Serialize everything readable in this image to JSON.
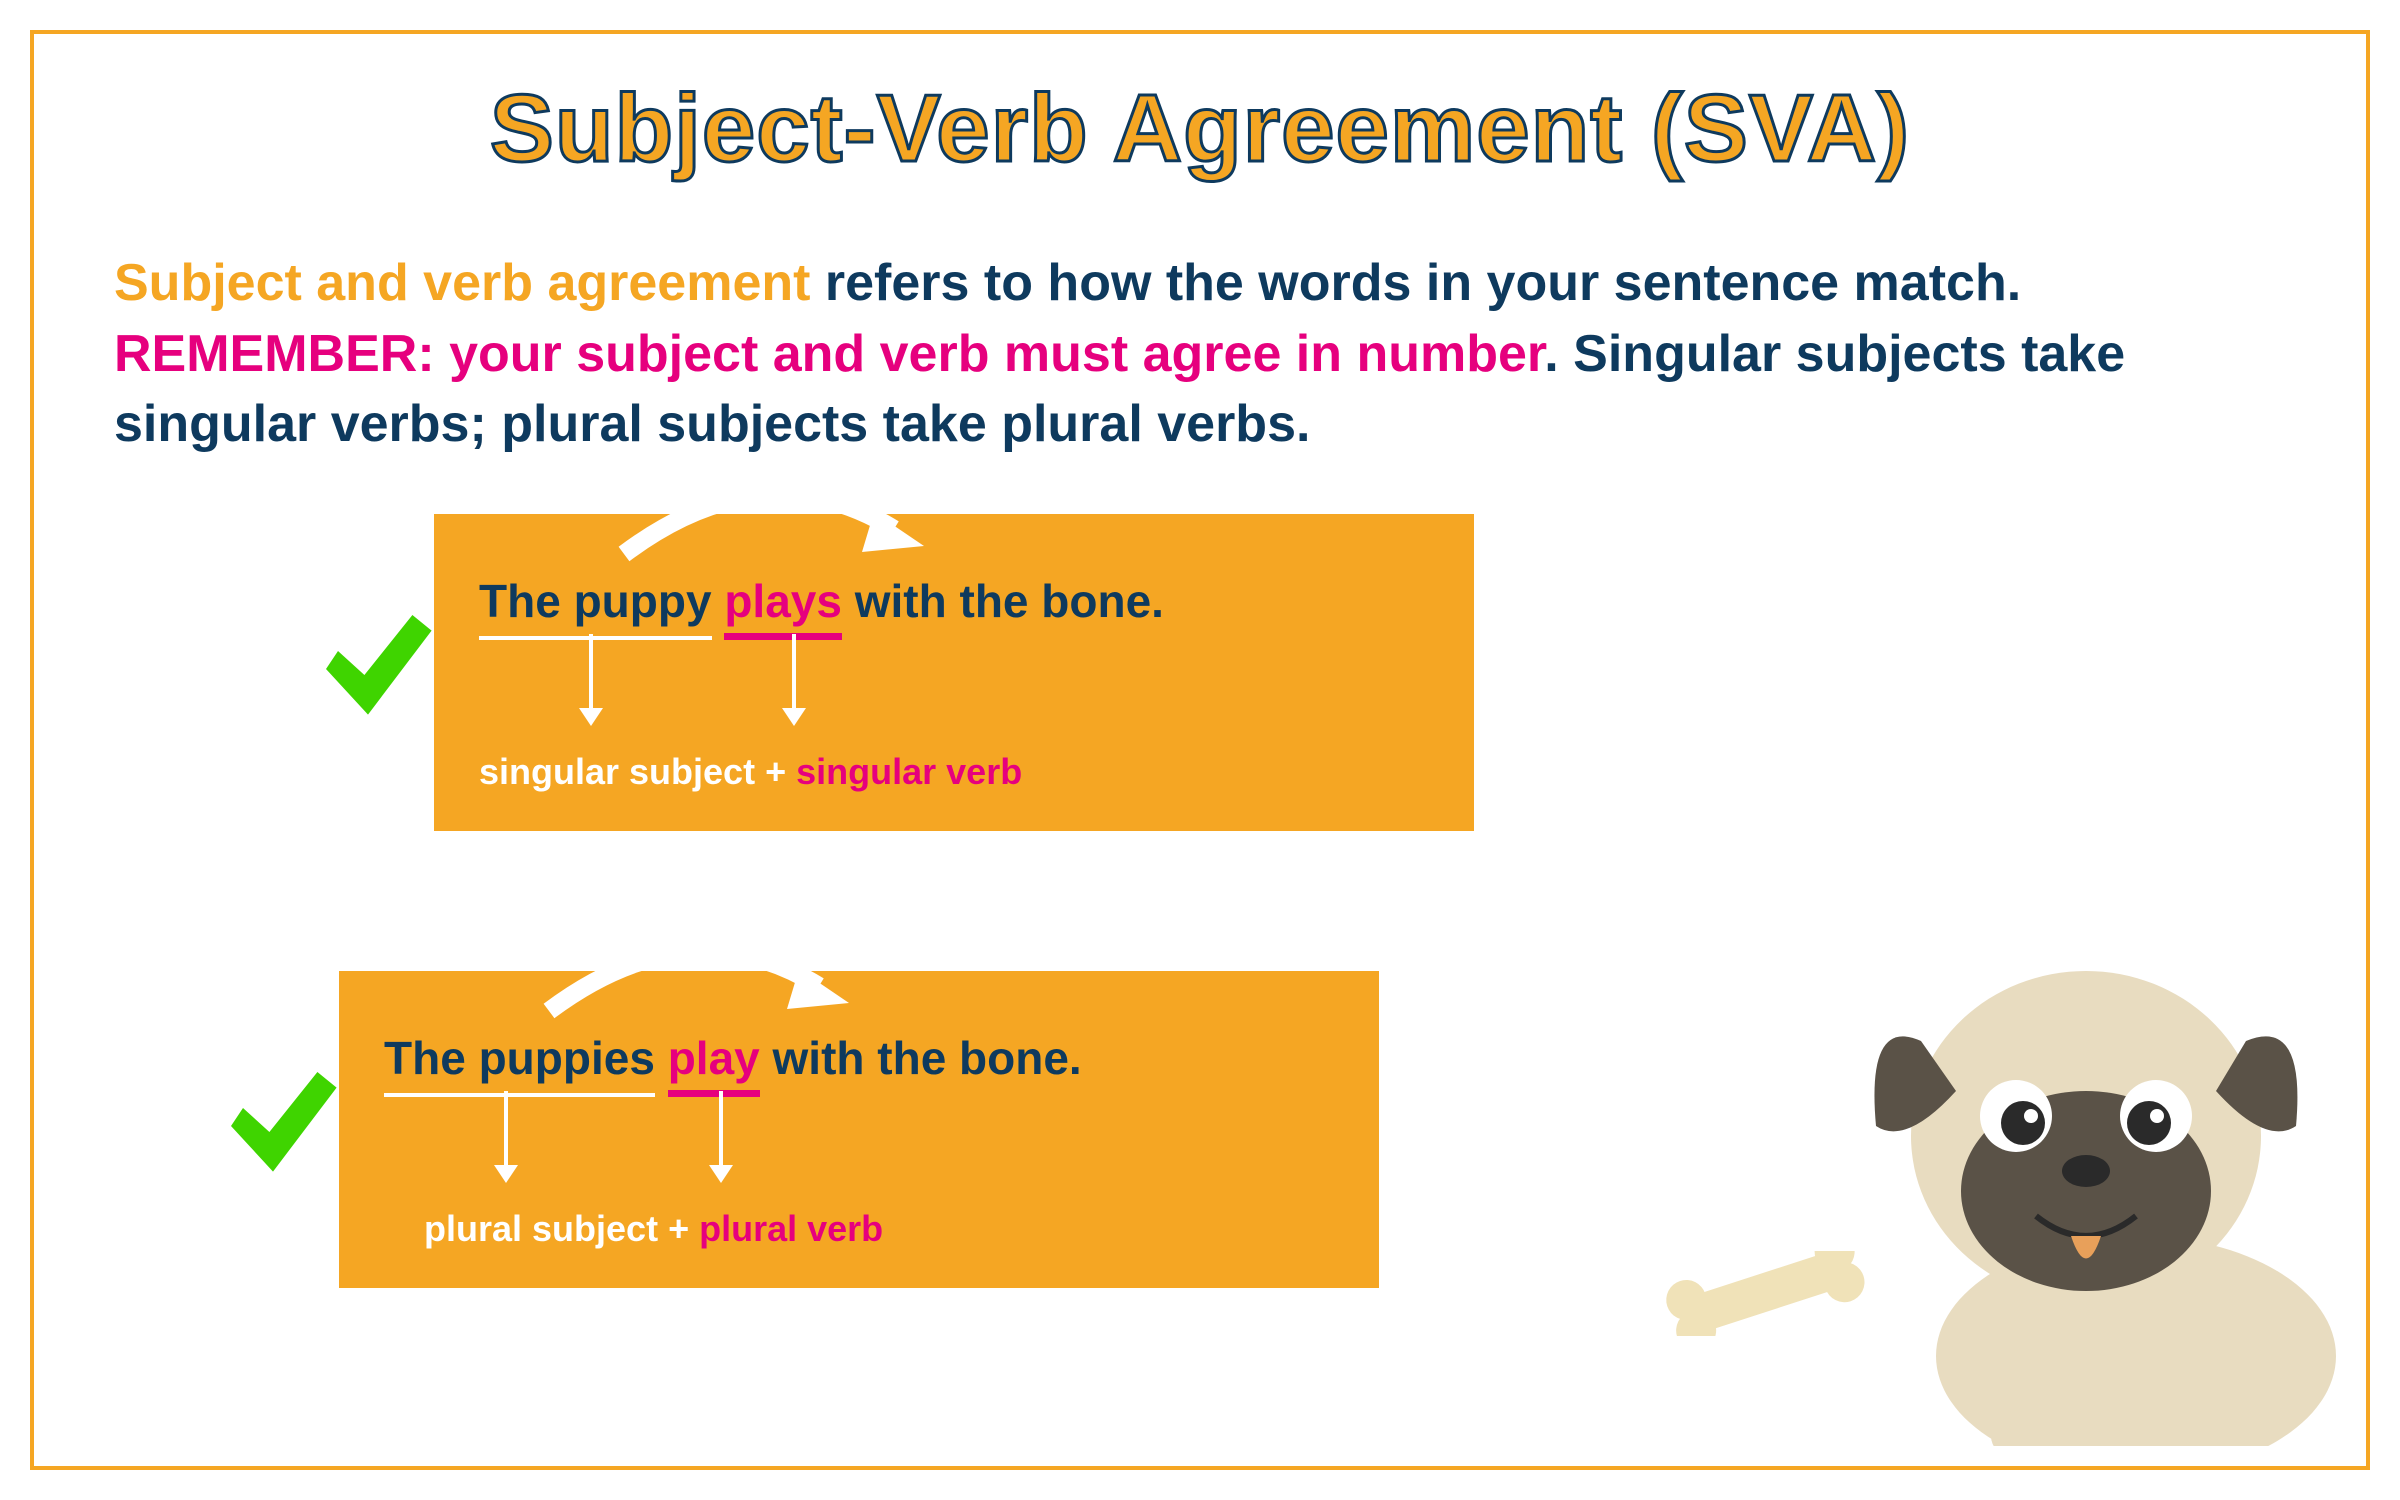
{
  "colors": {
    "orange": "#f5a623",
    "orange_border": "#f5a623",
    "navy": "#0e3a5e",
    "magenta": "#e6007e",
    "white": "#ffffff",
    "green": "#3fd400",
    "title_stroke": "#0e3a5e",
    "title_fill": "#f5a623",
    "pug_body": "#e8dcc0",
    "pug_dark": "#5a5247",
    "bone": "#f0e2b8"
  },
  "title": "Subject-Verb Agreement (SVA)",
  "intro": {
    "part1": "Subject and verb agreement",
    "part2": " refers to how the words in your sentence match. ",
    "part3": "REMEMBER: your subject and verb must agree in number",
    "part4": ". Singular subjects take singular verbs; plural subjects take plural verbs."
  },
  "example1": {
    "pre": "The ",
    "subject": "puppy",
    "verb": "plays",
    "post": " with the bone.",
    "label_subject": "singular subject",
    "label_verb": "singular verb"
  },
  "example2": {
    "pre": "The ",
    "subject": "puppies",
    "verb": "play",
    "post": " with the bone.",
    "label_subject": "plural subject",
    "label_verb": "plural verb"
  }
}
